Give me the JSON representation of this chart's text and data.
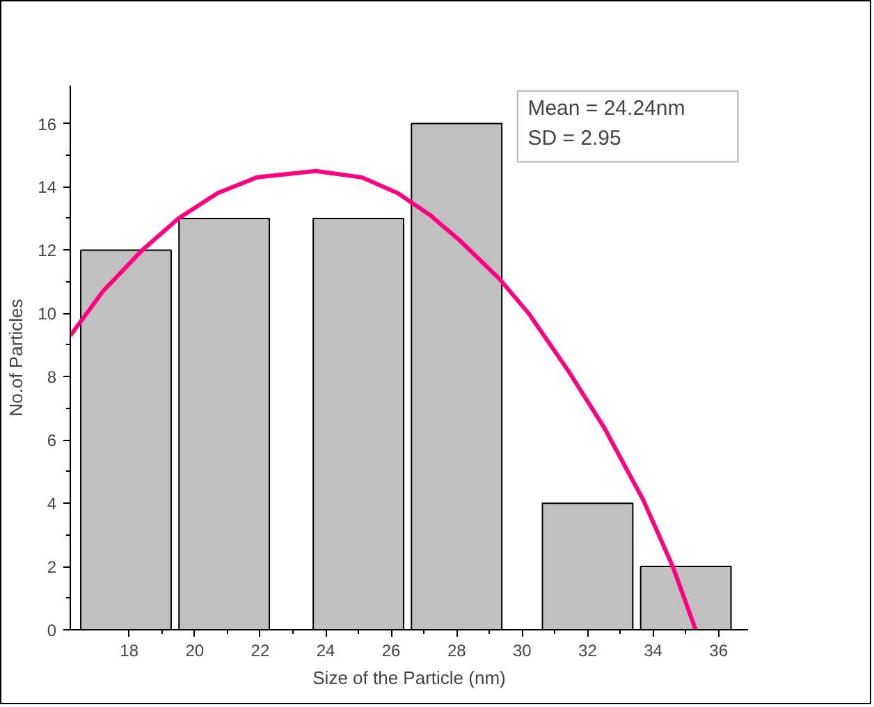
{
  "chart_data": {
    "type": "bar",
    "xlabel": "Size of the Particle (nm)",
    "ylabel": "No.of Particles",
    "xlim": [
      16.2,
      36.9
    ],
    "xticks": [
      18,
      20,
      22,
      24,
      26,
      28,
      30,
      32,
      34,
      36
    ],
    "ylim": [
      0,
      17.2
    ],
    "yticks": [
      0,
      2,
      4,
      6,
      8,
      10,
      12,
      14,
      16
    ],
    "grid": false,
    "annotations": [
      "Mean = 24.24nm",
      "SD = 2.95"
    ],
    "series": [
      {
        "color": "#c0c0c0",
        "x": [
          17.9,
          20.9,
          25,
          28,
          32,
          35
        ],
        "values": [
          12,
          13,
          13,
          16,
          4,
          2
        ]
      },
      {
        "type": "line",
        "color": "#ff007f",
        "line_style": "solid",
        "marker": "none",
        "x": [
          16.2,
          17.2,
          18.4,
          19.5,
          20.7,
          21.9,
          23.7,
          25.1,
          26.2,
          27.2,
          28.1,
          29.3,
          30.2,
          31.4,
          32.5,
          33.7,
          34.6,
          35.3
        ],
        "values": [
          9.3,
          10.7,
          12.0,
          13.0,
          13.8,
          14.3,
          14.5,
          14.3,
          13.8,
          13.1,
          12.3,
          11.1,
          10.0,
          8.2,
          6.4,
          4.1,
          2.0,
          0
        ]
      }
    ]
  }
}
